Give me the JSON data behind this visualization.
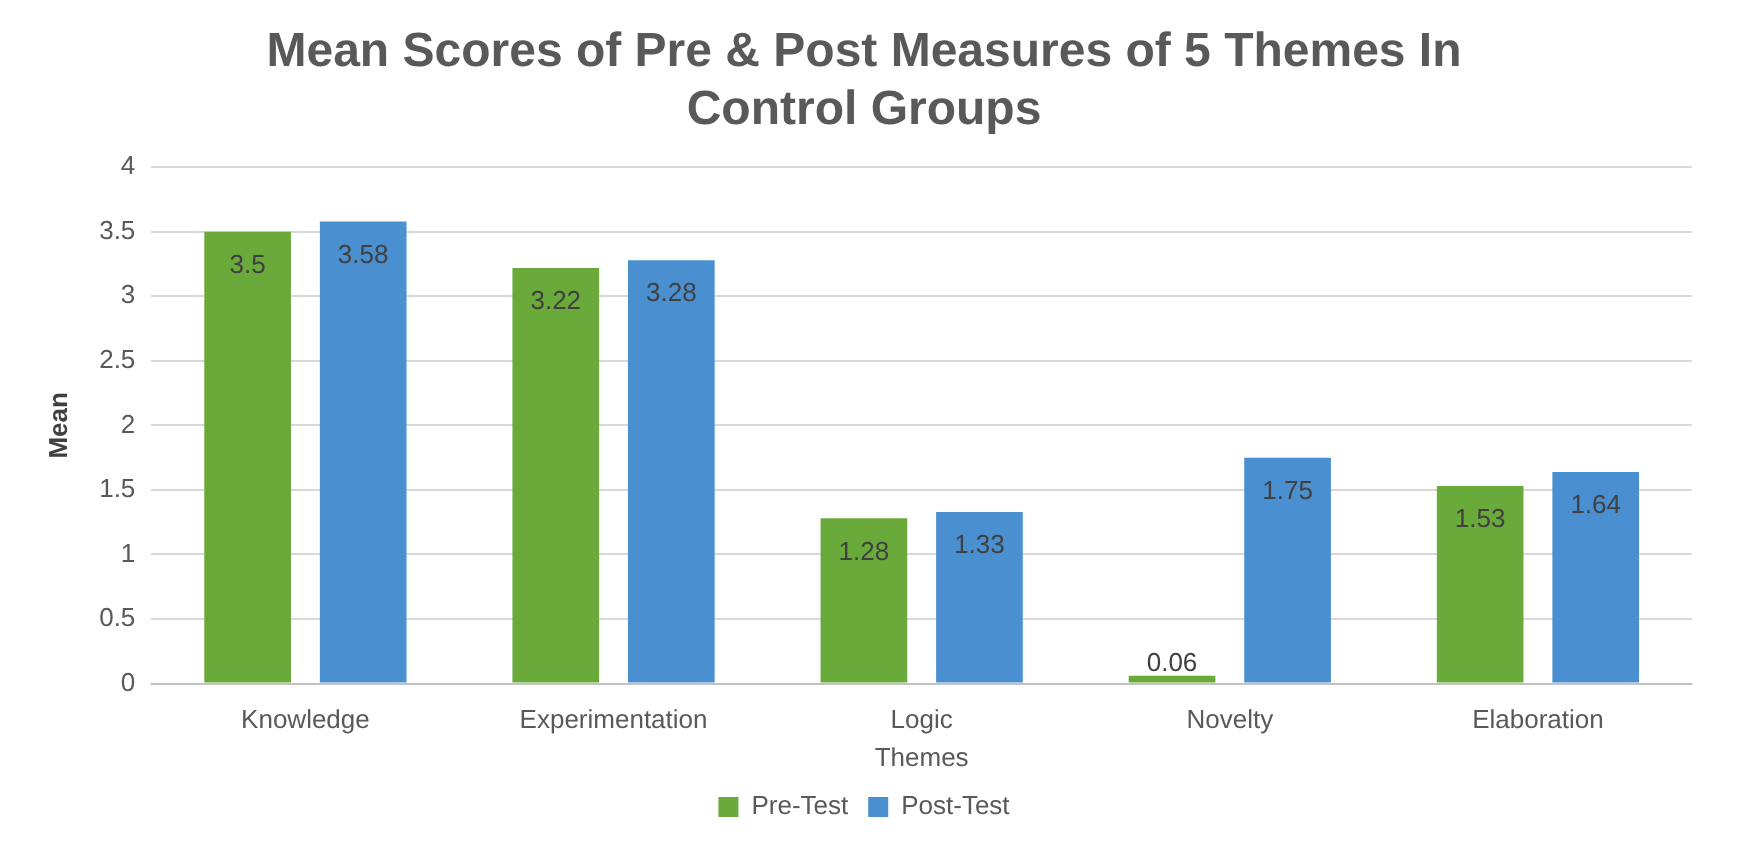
{
  "chart_data": {
    "type": "bar",
    "title": "Mean Scores of Pre & Post Measures of 5 Themes In Control Groups",
    "xlabel": "Themes",
    "ylabel": "Mean",
    "categories": [
      "Knowledge",
      "Experimentation",
      "Logic",
      "Novelty",
      "Elaboration"
    ],
    "series": [
      {
        "name": "Pre-Test",
        "color": "#6aaa3a",
        "values": [
          3.5,
          3.22,
          1.28,
          0.06,
          1.53
        ]
      },
      {
        "name": "Post-Test",
        "color": "#4a8fd0",
        "values": [
          3.58,
          3.28,
          1.33,
          1.75,
          1.64
        ]
      }
    ],
    "ylim": [
      0,
      4
    ],
    "yticks": [
      0,
      0.5,
      1,
      1.5,
      2,
      2.5,
      3,
      3.5,
      4
    ],
    "grid": "y",
    "legend": "bottom",
    "data_labels": true
  }
}
